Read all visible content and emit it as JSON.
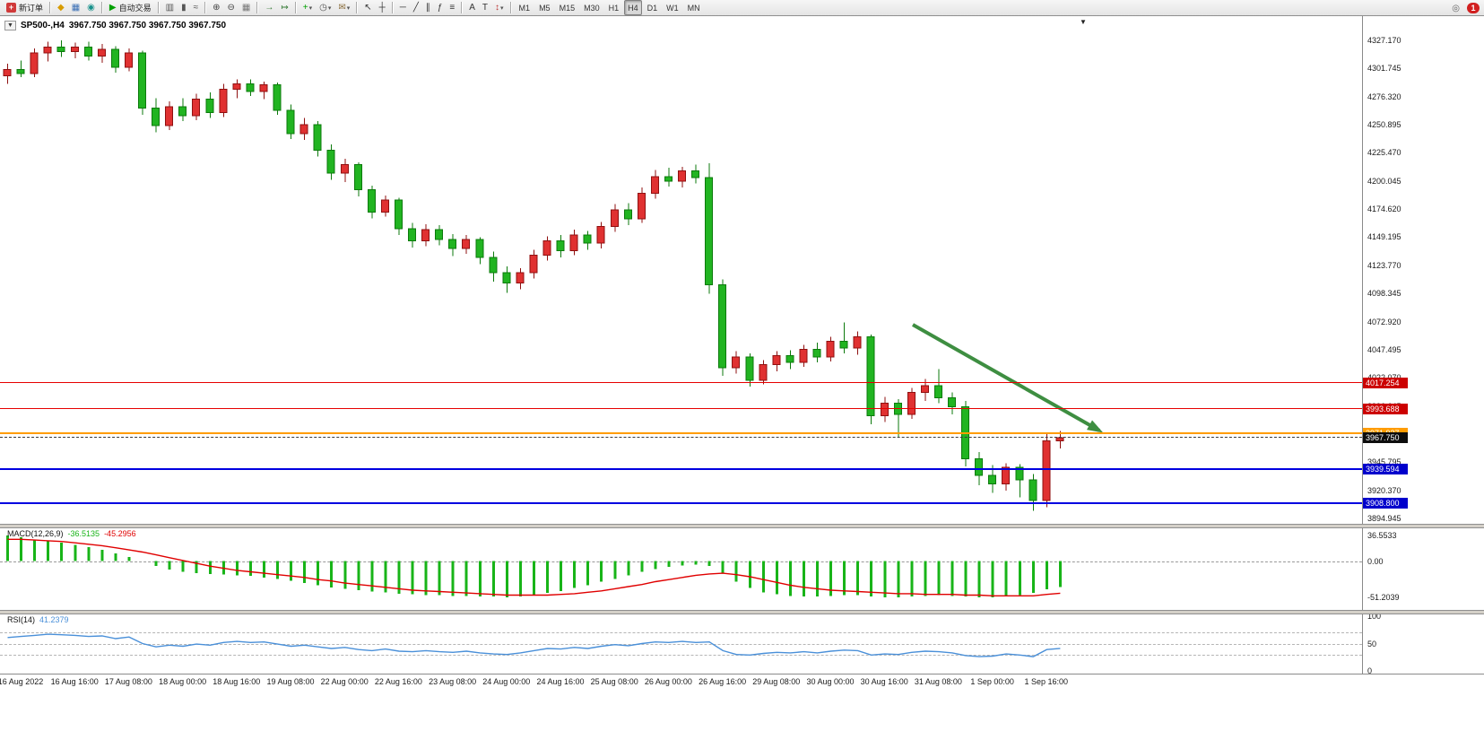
{
  "toolbar": {
    "groups": [
      [
        {
          "name": "new-order-button",
          "label": "新订单",
          "chip": "#d03a3a",
          "glyph": "+"
        }
      ],
      [
        {
          "name": "market-watch-button",
          "glyph": "◆",
          "color": "#d79b00"
        },
        {
          "name": "data-window-button",
          "glyph": "▦",
          "color": "#3b6fb5"
        },
        {
          "name": "terminal-button",
          "glyph": "◉",
          "color": "#18918b"
        }
      ],
      [
        {
          "name": "autotrading-button",
          "label": "自动交易",
          "glyph": "▶",
          "color": "#00a000"
        }
      ],
      [
        {
          "name": "bar-chart-button",
          "glyph": "▥",
          "color": "#555555"
        },
        {
          "name": "candlestick-chart-button",
          "glyph": "▮",
          "color": "#555555"
        },
        {
          "name": "line-chart-button",
          "glyph": "≈",
          "color": "#555555"
        }
      ],
      [
        {
          "name": "zoom-in-button",
          "glyph": "⊕",
          "color": "#444444"
        },
        {
          "name": "zoom-out-button",
          "glyph": "⊖",
          "color": "#444444"
        },
        {
          "name": "tile-windows-button",
          "glyph": "▦",
          "color": "#777777"
        }
      ],
      [
        {
          "name": "auto-scroll-button",
          "glyph": "→",
          "color": "#3a7d3a"
        },
        {
          "name": "chart-shift-button",
          "glyph": "↦",
          "color": "#3a7d3a"
        }
      ],
      [
        {
          "name": "indicators-button",
          "glyph": "+",
          "color": "#00a000",
          "dd": true
        },
        {
          "name": "periods-button",
          "glyph": "◷",
          "color": "#555555",
          "dd": true
        },
        {
          "name": "templates-button",
          "glyph": "✉",
          "color": "#8a6d3b",
          "dd": true
        }
      ],
      [
        {
          "name": "cursor-button",
          "glyph": "↖",
          "color": "#333333"
        },
        {
          "name": "crosshair-button",
          "glyph": "┼",
          "color": "#333333"
        }
      ],
      [
        {
          "name": "horizontal-line-button",
          "glyph": "─",
          "color": "#333333"
        },
        {
          "name": "trendline-button",
          "glyph": "╱",
          "color": "#333333"
        },
        {
          "name": "equidistant-channel-button",
          "glyph": "∥",
          "color": "#333333"
        },
        {
          "name": "fibonacci-retracement-button",
          "glyph": "ƒ",
          "color": "#333333"
        },
        {
          "name": "cycle-lines-button",
          "glyph": "≡",
          "color": "#333333"
        }
      ],
      [
        {
          "name": "text-button",
          "glyph": "A",
          "color": "#333333"
        },
        {
          "name": "text-label-button",
          "glyph": "T",
          "color": "#333333"
        },
        {
          "name": "arrows-button",
          "glyph": "↕",
          "color": "#bb3333",
          "dd": true
        }
      ],
      [
        {
          "name": "timeframe-m1-button",
          "text": "M1"
        },
        {
          "name": "timeframe-m5-button",
          "text": "M5"
        },
        {
          "name": "timeframe-m15-button",
          "text": "M15"
        },
        {
          "name": "timeframe-m30-button",
          "text": "M30"
        },
        {
          "name": "timeframe-h1-button",
          "text": "H1"
        },
        {
          "name": "timeframe-h4-button",
          "text": "H4",
          "active": true
        },
        {
          "name": "timeframe-d1-button",
          "text": "D1"
        },
        {
          "name": "timeframe-w1-button",
          "text": "W1"
        },
        {
          "name": "timeframe-mn-button",
          "text": "MN"
        }
      ]
    ],
    "right_items": [
      {
        "name": "search-button",
        "glyph": "◎",
        "color": "#666666"
      },
      {
        "name": "notifications-button",
        "badge": "1"
      }
    ]
  },
  "chart": {
    "title": {
      "symbol_period": "SP500-,H4",
      "ohlc": "3967.750 3967.750 3967.750 3967.750"
    },
    "end_marker_glyph": "▼",
    "dropdown_glyph": "▼",
    "price_axis": {
      "labels": [
        "4327.170",
        "4301.745",
        "4276.320",
        "4250.895",
        "4225.470",
        "4200.045",
        "4174.620",
        "4149.195",
        "4123.770",
        "4098.345",
        "4072.920",
        "4047.495",
        "4022.070",
        "3996.645",
        "3971.220",
        "3945.795",
        "3920.370",
        "3894.945"
      ],
      "max": 4327.17,
      "min": 3894.945
    },
    "time_axis": [
      "16 Aug 2022",
      "16 Aug 16:00",
      "17 Aug 08:00",
      "18 Aug 00:00",
      "18 Aug 16:00",
      "19 Aug 08:00",
      "22 Aug 00:00",
      "22 Aug 16:00",
      "23 Aug 08:00",
      "24 Aug 00:00",
      "24 Aug 16:00",
      "25 Aug 08:00",
      "26 Aug 00:00",
      "26 Aug 16:00",
      "29 Aug 08:00",
      "30 Aug 00:00",
      "30 Aug 16:00",
      "31 Aug 08:00",
      "1 Sep 00:00",
      "1 Sep 16:00"
    ],
    "hlines": [
      {
        "text": "4017.254",
        "price": 4017.254,
        "line": "#e60000",
        "bg": "#cc0000",
        "style": "solid",
        "thickness": 1
      },
      {
        "text": "3993.688",
        "price": 3993.688,
        "line": "#e60000",
        "bg": "#cc0000",
        "style": "solid",
        "thickness": 1
      },
      {
        "text": "3971.937",
        "price": 3971.937,
        "line": "#ff9c00",
        "bg": "#ff9c00",
        "style": "solid",
        "thickness": 2
      },
      {
        "text": "3967.750",
        "price": 3967.75,
        "line": "#3a3a3a",
        "bg": "#0d0d0d",
        "style": "dashed",
        "thickness": 1
      },
      {
        "text": "3939.594",
        "price": 3939.594,
        "line": "#0000e0",
        "bg": "#0000cc",
        "style": "solid",
        "thickness": 2
      },
      {
        "text": "3908.800",
        "price": 3908.8,
        "line": "#0000e0",
        "bg": "#0000cc",
        "style": "solid",
        "thickness": 2
      }
    ],
    "arrow": {
      "from": [
        1018,
        362
      ],
      "to": [
        1226,
        480
      ],
      "color": "#3e8e41"
    },
    "chart_data": {
      "type": "candlestick",
      "symbol": "SP500-",
      "timeframe": "H4",
      "title": "SP500-,H4",
      "price_range": [
        3894.945,
        4327.17
      ],
      "x_labels": [
        "16 Aug 2022",
        "16 Aug 16:00",
        "17 Aug 08:00",
        "18 Aug 00:00",
        "18 Aug 16:00",
        "19 Aug 08:00",
        "22 Aug 00:00",
        "22 Aug 16:00",
        "23 Aug 08:00",
        "24 Aug 00:00",
        "24 Aug 16:00",
        "25 Aug 08:00",
        "26 Aug 00:00",
        "26 Aug 16:00",
        "29 Aug 08:00",
        "30 Aug 00:00",
        "30 Aug 16:00",
        "31 Aug 08:00",
        "1 Sep 00:00",
        "1 Sep 16:00"
      ],
      "candles_ohlc": [
        [
          4295,
          4306,
          4288,
          4301
        ],
        [
          4301,
          4309,
          4294,
          4297
        ],
        [
          4297,
          4320,
          4294,
          4316
        ],
        [
          4316,
          4326,
          4308,
          4321
        ],
        [
          4321,
          4327,
          4312,
          4317
        ],
        [
          4317,
          4325,
          4311,
          4321
        ],
        [
          4321,
          4326,
          4309,
          4313
        ],
        [
          4313,
          4324,
          4307,
          4319
        ],
        [
          4319,
          4322,
          4298,
          4303
        ],
        [
          4303,
          4320,
          4299,
          4316
        ],
        [
          4316,
          4318,
          4260,
          4266
        ],
        [
          4266,
          4275,
          4244,
          4250
        ],
        [
          4250,
          4272,
          4246,
          4267
        ],
        [
          4267,
          4275,
          4254,
          4259
        ],
        [
          4259,
          4279,
          4255,
          4274
        ],
        [
          4274,
          4280,
          4257,
          4262
        ],
        [
          4262,
          4288,
          4258,
          4283
        ],
        [
          4283,
          4292,
          4275,
          4288
        ],
        [
          4288,
          4292,
          4277,
          4281
        ],
        [
          4281,
          4290,
          4274,
          4287
        ],
        [
          4287,
          4289,
          4260,
          4264
        ],
        [
          4264,
          4269,
          4238,
          4243
        ],
        [
          4243,
          4257,
          4237,
          4251
        ],
        [
          4251,
          4254,
          4222,
          4228
        ],
        [
          4228,
          4233,
          4201,
          4207
        ],
        [
          4207,
          4220,
          4199,
          4215
        ],
        [
          4215,
          4217,
          4186,
          4192
        ],
        [
          4192,
          4196,
          4166,
          4172
        ],
        [
          4172,
          4187,
          4168,
          4183
        ],
        [
          4183,
          4185,
          4151,
          4157
        ],
        [
          4157,
          4162,
          4140,
          4146
        ],
        [
          4146,
          4161,
          4141,
          4156
        ],
        [
          4156,
          4160,
          4142,
          4147
        ],
        [
          4147,
          4152,
          4132,
          4139
        ],
        [
          4139,
          4151,
          4134,
          4147
        ],
        [
          4147,
          4149,
          4125,
          4131
        ],
        [
          4131,
          4136,
          4109,
          4117
        ],
        [
          4117,
          4123,
          4099,
          4108
        ],
        [
          4108,
          4121,
          4102,
          4117
        ],
        [
          4117,
          4138,
          4112,
          4133
        ],
        [
          4133,
          4150,
          4128,
          4146
        ],
        [
          4146,
          4151,
          4131,
          4137
        ],
        [
          4137,
          4156,
          4133,
          4151
        ],
        [
          4151,
          4155,
          4138,
          4144
        ],
        [
          4144,
          4163,
          4139,
          4159
        ],
        [
          4159,
          4179,
          4154,
          4174
        ],
        [
          4174,
          4180,
          4160,
          4166
        ],
        [
          4166,
          4194,
          4162,
          4189
        ],
        [
          4189,
          4210,
          4184,
          4204
        ],
        [
          4204,
          4212,
          4195,
          4200
        ],
        [
          4200,
          4213,
          4194,
          4209
        ],
        [
          4209,
          4215,
          4198,
          4203
        ],
        [
          4203,
          4216,
          4098,
          4106
        ],
        [
          4106,
          4111,
          4024,
          4031
        ],
        [
          4031,
          4046,
          4026,
          4041
        ],
        [
          4041,
          4044,
          4014,
          4020
        ],
        [
          4020,
          4038,
          4016,
          4034
        ],
        [
          4034,
          4046,
          4028,
          4042
        ],
        [
          4042,
          4047,
          4030,
          4036
        ],
        [
          4036,
          4052,
          4032,
          4048
        ],
        [
          4048,
          4054,
          4036,
          4041
        ],
        [
          4041,
          4059,
          4037,
          4055
        ],
        [
          4055,
          4072,
          4044,
          4049
        ],
        [
          4049,
          4064,
          4043,
          4059
        ],
        [
          4059,
          4061,
          3980,
          3988
        ],
        [
          3988,
          4005,
          3982,
          3999
        ],
        [
          3999,
          4003,
          3968,
          3989
        ],
        [
          3989,
          4013,
          3985,
          4009
        ],
        [
          4009,
          4021,
          4001,
          4015
        ],
        [
          4015,
          4030,
          3999,
          4004
        ],
        [
          4004,
          4009,
          3989,
          3996
        ],
        [
          3996,
          4001,
          3942,
          3949
        ],
        [
          3949,
          3955,
          3925,
          3934
        ],
        [
          3934,
          3943,
          3918,
          3926
        ],
        [
          3926,
          3945,
          3920,
          3941
        ],
        [
          3941,
          3944,
          3914,
          3930
        ],
        [
          3930,
          3935,
          3902,
          3911
        ],
        [
          3911,
          3972,
          3905,
          3965
        ],
        [
          3965,
          3974,
          3958,
          3967.75
        ]
      ],
      "indicators": [
        {
          "name": "MACD(12,26,9)",
          "range": [
            -51.2039,
            36.5533
          ],
          "histogram": [
            36.5,
            34,
            31,
            28,
            26,
            23,
            20,
            16,
            11,
            6,
            0,
            -7,
            -12,
            -15,
            -17,
            -18,
            -19,
            -20,
            -21,
            -23,
            -25,
            -28,
            -31,
            -34,
            -37,
            -39,
            -41,
            -43,
            -44,
            -46,
            -47,
            -48,
            -48,
            -49,
            -49,
            -50,
            -50,
            -51,
            -50,
            -48,
            -45,
            -42,
            -38,
            -34,
            -29,
            -25,
            -20,
            -15,
            -11,
            -8,
            -6,
            -5,
            -7,
            -17,
            -29,
            -38,
            -44,
            -47,
            -49,
            -50,
            -50,
            -49,
            -48,
            -48,
            -50,
            -51.2,
            -51,
            -50,
            -49,
            -48,
            -49,
            -50,
            -51,
            -51,
            -50,
            -48,
            -45,
            -40,
            -36.5
          ],
          "signal": [
            31,
            31,
            30,
            29,
            28,
            26,
            24,
            22,
            19,
            16,
            13,
            9,
            5,
            1,
            -3,
            -7,
            -10,
            -13,
            -15,
            -17,
            -19,
            -21,
            -23,
            -26,
            -28,
            -31,
            -33,
            -35,
            -37,
            -39,
            -41,
            -42,
            -43,
            -44,
            -45,
            -46,
            -47,
            -48,
            -48,
            -48,
            -48,
            -47,
            -46,
            -44,
            -42,
            -39,
            -36,
            -33,
            -29,
            -26,
            -23,
            -20,
            -18,
            -17,
            -19,
            -22,
            -26,
            -30,
            -34,
            -37,
            -39,
            -41,
            -42,
            -43,
            -44,
            -45,
            -46,
            -46,
            -47,
            -47,
            -47,
            -48,
            -48,
            -49,
            -49,
            -49,
            -49,
            -47,
            -45.3
          ]
        },
        {
          "name": "RSI(14)",
          "range": [
            0,
            100
          ],
          "values": [
            61,
            63,
            65,
            67,
            66,
            65,
            63,
            64,
            59,
            62,
            50,
            44,
            47,
            45,
            49,
            47,
            52,
            54,
            52,
            53,
            49,
            45,
            47,
            44,
            41,
            43,
            39,
            37,
            40,
            36,
            35,
            37,
            35,
            34,
            36,
            33,
            31,
            30,
            33,
            37,
            41,
            40,
            43,
            41,
            45,
            48,
            46,
            50,
            53,
            52,
            54,
            52,
            53,
            37,
            30,
            29,
            32,
            34,
            33,
            35,
            33,
            36,
            38,
            37,
            29,
            31,
            30,
            34,
            36,
            35,
            33,
            28,
            26,
            27,
            31,
            29,
            26,
            39,
            41.2
          ]
        }
      ],
      "overlays": {
        "horizontal_lines": [
          4017.254,
          3993.688,
          3971.937,
          3939.594,
          3908.8
        ],
        "current_price": 3967.75,
        "annotation": "green down-trend arrow"
      }
    }
  },
  "macd": {
    "label": "MACD(12,26,9)",
    "value_main": "-36.5135",
    "value_signal": "-45.2956",
    "axis": [
      "36.5533",
      "0.00",
      "-51.2039"
    ]
  },
  "rsi": {
    "label": "RSI(14)",
    "value": "41.2379",
    "axis": [
      "100",
      "50",
      "0"
    ],
    "levels": [
      70,
      50,
      30
    ]
  },
  "colors": {
    "candle_up_fill": "#e03131",
    "candle_up_stroke": "#8f1010",
    "candle_down_fill": "#21b421",
    "candle_down_stroke": "#0c7a0c",
    "macd_histogram": "#18b418",
    "macd_signal": "#e00000",
    "rsi_line": "#4a90d9",
    "resistance_line": "#e60000",
    "pivot_line": "#ff9c00",
    "support_line": "#0000e0",
    "arrow": "#3e8e41"
  }
}
